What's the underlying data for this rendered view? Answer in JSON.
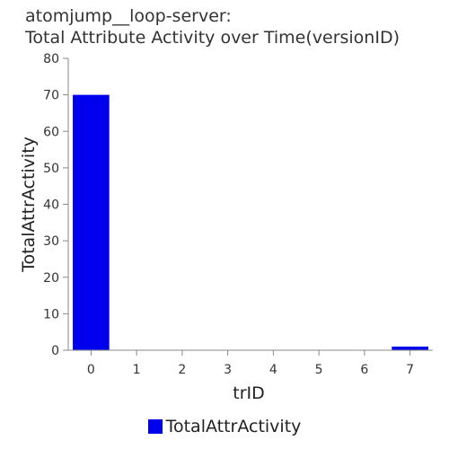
{
  "chart_data": {
    "type": "bar",
    "title_line1": "atomjump__loop-server:",
    "title_line2": "Total Attribute Activity over Time(versionID)",
    "xlabel": "trID",
    "ylabel": "TotalAttrActivity",
    "categories": [
      "0",
      "1",
      "2",
      "3",
      "4",
      "5",
      "6",
      "7"
    ],
    "series": [
      {
        "name": "TotalAttrActivity",
        "color": "#0000ee",
        "values": [
          70,
          0,
          0,
          0,
          0,
          0,
          0,
          1
        ]
      }
    ],
    "ylim": [
      0,
      80
    ],
    "yticks": [
      0,
      10,
      20,
      30,
      40,
      50,
      60,
      70,
      80
    ],
    "grid": false,
    "legend_position": "bottom-center"
  }
}
